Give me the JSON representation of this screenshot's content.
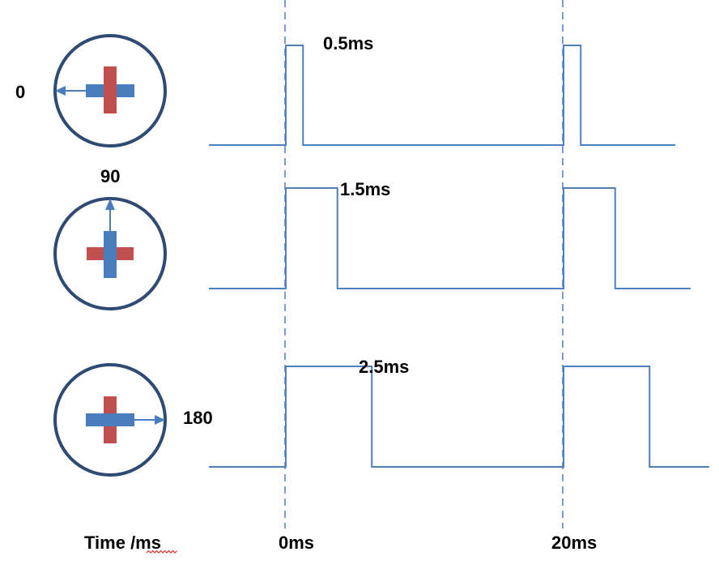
{
  "colors": {
    "signal": "#4f7fbf",
    "dial_ring": "#2f4a73",
    "dial_arm": "#4a7dbd",
    "dial_cross": "#c0504d",
    "spellcheck": "#e03030"
  },
  "diagram": {
    "servos": [
      {
        "angle_label": "0",
        "pulse_label": "0.5ms",
        "pulse_ms": 0.5,
        "pointer": "arrow-left-icon"
      },
      {
        "angle_label": "90",
        "pulse_label": "1.5ms",
        "pulse_ms": 1.5,
        "pointer": "arrow-up-icon"
      },
      {
        "angle_label": "180",
        "pulse_label": "2.5ms",
        "pulse_ms": 2.5,
        "pointer": "arrow-right-icon"
      }
    ],
    "time_axis": {
      "label": "Time /ms",
      "markers": [
        "0ms",
        "20ms"
      ],
      "period_ms": 20
    }
  }
}
